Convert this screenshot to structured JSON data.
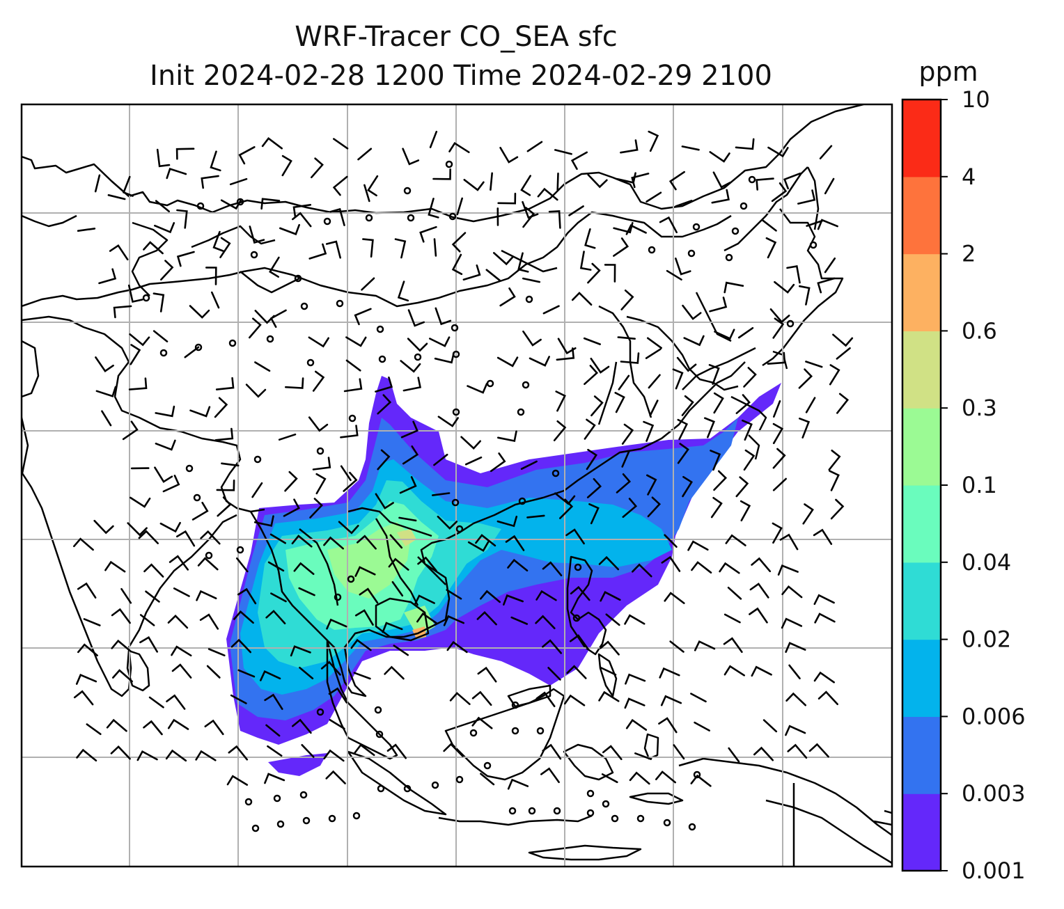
{
  "figure": {
    "title_line1": "WRF-Tracer CO_SEA sfc",
    "title_line2": "Init 2024-02-28 1200 Time 2024-02-29 2100"
  },
  "colorbar": {
    "unit": "ppm",
    "levels": [
      "0.001",
      "0.003",
      "0.006",
      "0.02",
      "0.04",
      "0.1",
      "0.3",
      "0.6",
      "2",
      "4",
      "10"
    ],
    "colors": [
      "#6428fa",
      "#3373f0",
      "#03b3ec",
      "#2fdcd5",
      "#6afcbd",
      "#9bfa94",
      "#d0e185",
      "#fdb161",
      "#fe733c",
      "#fb2b17"
    ]
  },
  "map": {
    "colors": {
      "coast": "#000000",
      "grid": "#b0b0b0",
      "barb": "#000000"
    },
    "plume_levels_shown": [
      "0.003",
      "0.006",
      "0.02",
      "0.04",
      "0.1",
      "0.3",
      "0.6"
    ]
  }
}
